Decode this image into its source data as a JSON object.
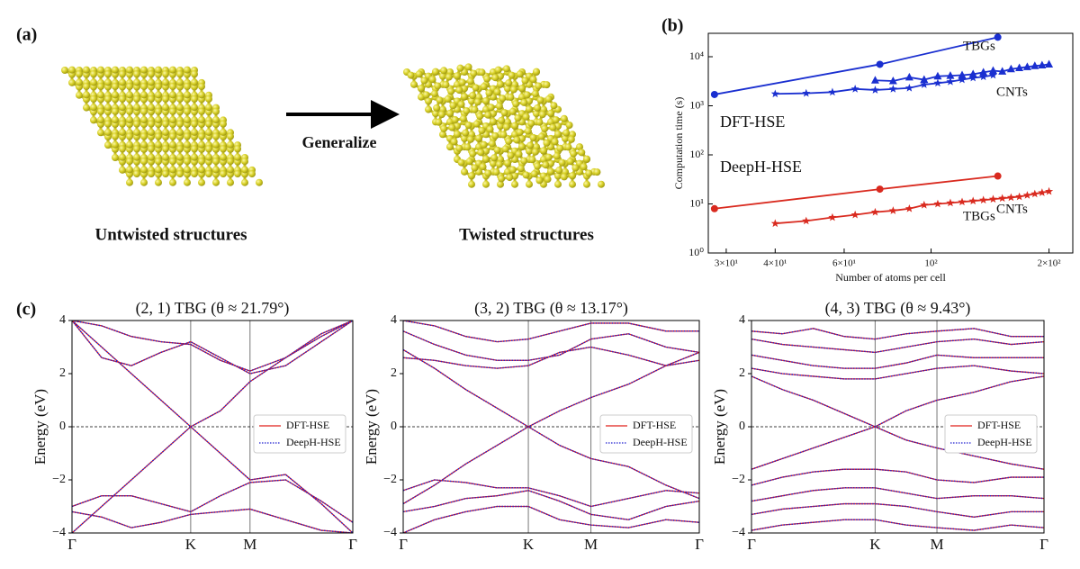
{
  "panel_labels": {
    "a": "(a)",
    "b": "(b)",
    "c": "(c)"
  },
  "panel_a": {
    "left_caption": "Untwisted structures",
    "arrow_label": "Generalize",
    "right_caption": "Twisted structures"
  },
  "chart_data": [
    {
      "type": "log_line",
      "xlabel": "Number of atoms per cell",
      "ylabel": "Computation time (s)",
      "log_x": true,
      "log_y": true,
      "xlim": [
        27,
        230
      ],
      "ylim": [
        1,
        30000
      ],
      "xticks": [
        {
          "value": 30,
          "label": "3×10¹"
        },
        {
          "value": 40,
          "label": "4×10¹"
        },
        {
          "value": 60,
          "label": "6×10¹"
        },
        {
          "value": 100,
          "label": "10²"
        },
        {
          "value": 200,
          "label": "2×10²"
        }
      ],
      "yticks": [
        {
          "value": 1,
          "label": "10⁰"
        },
        {
          "value": 10,
          "label": "10¹"
        },
        {
          "value": 100,
          "label": "10²"
        },
        {
          "value": 1000,
          "label": "10³"
        },
        {
          "value": 10000,
          "label": "10⁴"
        }
      ],
      "series": [
        {
          "color": "#1a2fd0",
          "marker": "circle",
          "x": [
            28,
            74,
            148
          ],
          "values": [
            1700,
            7000,
            25000
          ]
        },
        {
          "color": "#1a2fd0",
          "marker": "star",
          "x": [
            40,
            48,
            56,
            64,
            72,
            80,
            88,
            96,
            104,
            112,
            120,
            128,
            136,
            144
          ],
          "values": [
            1750,
            1800,
            1900,
            2200,
            2100,
            2200,
            2300,
            2700,
            2900,
            3100,
            3400,
            3700,
            3900,
            4200
          ]
        },
        {
          "color": "#1a2fd0",
          "marker": "triangle",
          "x": [
            72,
            80,
            88,
            96,
            104,
            112,
            120,
            128,
            136,
            144,
            152,
            160,
            168,
            176,
            184,
            192,
            200
          ],
          "values": [
            3300,
            3200,
            3800,
            3400,
            4000,
            4100,
            4200,
            4400,
            4800,
            5200,
            5000,
            5600,
            5900,
            6200,
            6500,
            6700,
            7000
          ]
        },
        {
          "color": "#d92a1f",
          "marker": "circle",
          "x": [
            28,
            74,
            148
          ],
          "values": [
            8,
            20,
            37
          ]
        },
        {
          "color": "#d92a1f",
          "marker": "star",
          "x": [
            40,
            48,
            56,
            64,
            72,
            80,
            88,
            96,
            104,
            112,
            120,
            128,
            136,
            144,
            152,
            160,
            168,
            176,
            184,
            192,
            200
          ],
          "values": [
            4,
            4.5,
            5.3,
            6,
            6.8,
            7.3,
            8,
            9.5,
            10,
            10.5,
            11,
            11.5,
            12,
            12.5,
            13,
            13.5,
            14,
            15,
            16,
            17,
            18
          ]
        }
      ],
      "annotations": [
        {
          "text": "TBGs",
          "color": "#111"
        },
        {
          "text": "CNTs",
          "color": "#111"
        },
        {
          "text": "DFT-HSE",
          "color": "#1a2fd0"
        },
        {
          "text": "DeepH-HSE",
          "color": "#d92a1f"
        },
        {
          "text": "TBGs",
          "color": "#111"
        },
        {
          "text": "CNTs",
          "color": "#111"
        }
      ]
    },
    {
      "type": "bands",
      "title": "(2, 1) TBG (θ ≈ 21.79°)",
      "ylabel": "Energy (eV)",
      "x": [
        0,
        0.25,
        0.5,
        0.75,
        1,
        1.25,
        1.5,
        1.8,
        2.1,
        2.366
      ],
      "xlim": [
        0,
        2.366
      ],
      "xticks": [
        {
          "value": 0,
          "label": "Γ"
        },
        {
          "value": 1,
          "label": "K"
        },
        {
          "value": 1.5,
          "label": "M"
        },
        {
          "value": 2.366,
          "label": "Γ"
        }
      ],
      "ylim": [
        -4,
        4
      ],
      "yticks": [
        {
          "value": -4,
          "label": "−4"
        },
        {
          "value": -2,
          "label": "−2"
        },
        0,
        2,
        4
      ],
      "reference_line": 0,
      "legend": "center right",
      "series": [
        {
          "name": "DFT-HSE",
          "color": "#e0201b",
          "dash": "solid"
        },
        {
          "name": "DeepH-HSE",
          "color": "#2020d0",
          "dash": "dotted"
        }
      ],
      "bands": [
        [
          4.0,
          3.0,
          2.0,
          1.0,
          0,
          0.6,
          1.7,
          2.6,
          3.4,
          4.0
        ],
        [
          -4.0,
          -3.0,
          -2.0,
          -1.0,
          0,
          -1.0,
          -2.0,
          -1.8,
          -2.9,
          -4.0
        ],
        [
          4.0,
          2.6,
          2.3,
          2.8,
          3.2,
          2.6,
          2.0,
          2.3,
          3.2,
          4.0
        ],
        [
          4.0,
          3.8,
          3.4,
          3.2,
          3.1,
          2.5,
          2.1,
          2.6,
          3.5,
          4.0
        ],
        [
          -3.0,
          -2.6,
          -2.6,
          -2.9,
          -3.2,
          -2.6,
          -2.1,
          -2.0,
          -2.8,
          -3.6
        ],
        [
          -3.2,
          -3.4,
          -3.8,
          -3.6,
          -3.3,
          -3.2,
          -3.1,
          -3.5,
          -3.9,
          -4.0
        ]
      ]
    },
    {
      "type": "bands",
      "title": "(3, 2) TBG (θ ≈ 13.17°)",
      "ylabel": "Energy (eV)",
      "x": [
        0,
        0.25,
        0.5,
        0.75,
        1,
        1.25,
        1.5,
        1.8,
        2.1,
        2.366
      ],
      "xlim": [
        0,
        2.366
      ],
      "xticks": [
        {
          "value": 0,
          "label": "Γ"
        },
        {
          "value": 1,
          "label": "K"
        },
        {
          "value": 1.5,
          "label": "M"
        },
        {
          "value": 2.366,
          "label": "Γ"
        }
      ],
      "ylim": [
        -4,
        4
      ],
      "yticks": [
        {
          "value": -4,
          "label": "−4"
        },
        {
          "value": -2,
          "label": "−2"
        },
        0,
        2,
        4
      ],
      "reference_line": 0,
      "legend": "center right",
      "series": [
        {
          "name": "DFT-HSE",
          "color": "#e0201b",
          "dash": "solid"
        },
        {
          "name": "DeepH-HSE",
          "color": "#2020d0",
          "dash": "dotted"
        }
      ],
      "bands": [
        [
          2.9,
          2.2,
          1.4,
          0.7,
          0,
          0.6,
          1.1,
          1.6,
          2.3,
          2.8
        ],
        [
          -2.9,
          -2.2,
          -1.4,
          -0.7,
          0,
          -0.7,
          -1.2,
          -1.5,
          -2.2,
          -2.7
        ],
        [
          2.6,
          2.5,
          2.3,
          2.2,
          2.3,
          2.8,
          3.0,
          2.7,
          2.3,
          2.5
        ],
        [
          3.6,
          3.1,
          2.7,
          2.5,
          2.5,
          2.7,
          3.3,
          3.5,
          3.0,
          2.8
        ],
        [
          4.0,
          3.8,
          3.4,
          3.2,
          3.3,
          3.6,
          3.9,
          3.9,
          3.6,
          3.6
        ],
        [
          -2.4,
          -2.0,
          -2.1,
          -2.3,
          -2.3,
          -2.6,
          -3.0,
          -2.7,
          -2.4,
          -2.5
        ],
        [
          -3.2,
          -3.0,
          -2.7,
          -2.6,
          -2.4,
          -2.8,
          -3.3,
          -3.5,
          -3.0,
          -2.8
        ],
        [
          -4.0,
          -3.5,
          -3.2,
          -3.0,
          -3.0,
          -3.5,
          -3.7,
          -3.8,
          -3.5,
          -3.6
        ]
      ]
    },
    {
      "type": "bands",
      "title": "(4, 3) TBG (θ ≈ 9.43°)",
      "ylabel": "Energy (eV)",
      "x": [
        0,
        0.25,
        0.5,
        0.75,
        1,
        1.25,
        1.5,
        1.8,
        2.1,
        2.366
      ],
      "xlim": [
        0,
        2.366
      ],
      "xticks": [
        {
          "value": 0,
          "label": "Γ"
        },
        {
          "value": 1,
          "label": "K"
        },
        {
          "value": 1.5,
          "label": "M"
        },
        {
          "value": 2.366,
          "label": "Γ"
        }
      ],
      "ylim": [
        -4,
        4
      ],
      "yticks": [
        {
          "value": -4,
          "label": "−4"
        },
        {
          "value": -2,
          "label": "−2"
        },
        0,
        2,
        4
      ],
      "reference_line": 0,
      "legend": "center right",
      "series": [
        {
          "name": "DFT-HSE",
          "color": "#e0201b",
          "dash": "solid"
        },
        {
          "name": "DeepH-HSE",
          "color": "#2020d0",
          "dash": "dotted"
        }
      ],
      "bands": [
        [
          1.9,
          1.4,
          1.0,
          0.5,
          0,
          0.6,
          1.0,
          1.3,
          1.7,
          1.9
        ],
        [
          -1.6,
          -1.2,
          -0.8,
          -0.4,
          0,
          -0.5,
          -0.8,
          -1.1,
          -1.4,
          -1.6
        ],
        [
          2.2,
          2.0,
          1.9,
          1.8,
          1.8,
          2.0,
          2.2,
          2.3,
          2.1,
          2.0
        ],
        [
          2.7,
          2.5,
          2.3,
          2.2,
          2.2,
          2.4,
          2.7,
          2.6,
          2.6,
          2.6
        ],
        [
          3.3,
          3.1,
          3.0,
          2.9,
          2.8,
          3.0,
          3.2,
          3.3,
          3.1,
          3.2
        ],
        [
          3.6,
          3.5,
          3.7,
          3.4,
          3.3,
          3.5,
          3.6,
          3.7,
          3.4,
          3.4
        ],
        [
          -2.2,
          -1.9,
          -1.7,
          -1.6,
          -1.6,
          -1.7,
          -2.0,
          -2.1,
          -1.9,
          -1.9
        ],
        [
          -2.8,
          -2.6,
          -2.4,
          -2.3,
          -2.3,
          -2.5,
          -2.7,
          -2.6,
          -2.6,
          -2.7
        ],
        [
          -3.3,
          -3.1,
          -3.0,
          -2.9,
          -2.9,
          -3.0,
          -3.2,
          -3.4,
          -3.2,
          -3.2
        ],
        [
          -3.9,
          -3.7,
          -3.6,
          -3.5,
          -3.5,
          -3.7,
          -3.8,
          -3.9,
          -3.7,
          -3.8
        ]
      ]
    }
  ]
}
